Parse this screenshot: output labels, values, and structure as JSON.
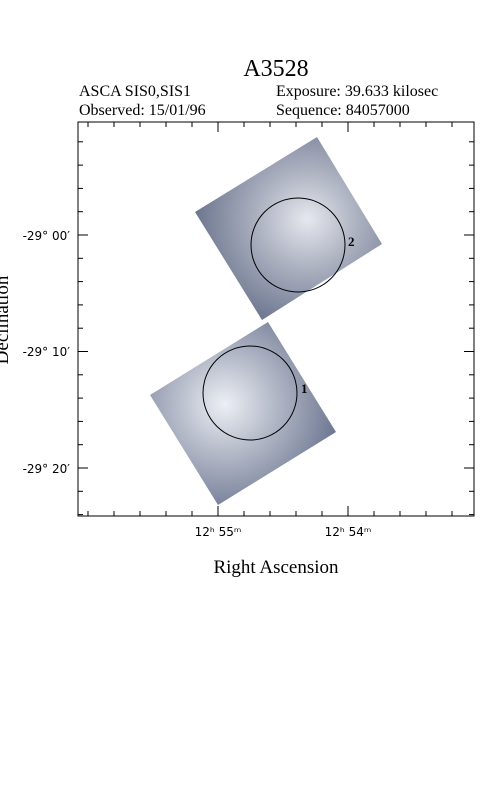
{
  "header": {
    "title": "A3528",
    "instrument": "ASCA SIS0,SIS1",
    "exposure": "Exposure: 39.633 kilosec",
    "observed": "Observed: 15/01/96",
    "sequence": "Sequence: 84057000"
  },
  "axes": {
    "x_label": "Right Ascension",
    "y_label": "Declination",
    "x_ticks": [
      "12ʰ 55ᵐ",
      "12ʰ 54ᵐ"
    ],
    "y_ticks": [
      "-29° 00′",
      "-29° 10′",
      "-29° 20′"
    ]
  },
  "regions": [
    "1",
    "2"
  ]
}
